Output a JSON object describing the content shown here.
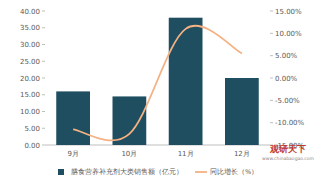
{
  "chart_data": {
    "type": "bar",
    "categories": [
      "9月",
      "10月",
      "11月",
      "12月"
    ],
    "series": [
      {
        "name": "膳食营养补充剂大类销售额（亿元）",
        "type": "bar",
        "color": "#1f4e60",
        "values": [
          16,
          14.5,
          38,
          20
        ]
      },
      {
        "name": "同比增长（%）",
        "type": "line",
        "color": "#f4b183",
        "axis": "y2",
        "values": [
          -11.5,
          -12.5,
          11,
          5.5
        ]
      }
    ],
    "ylim": [
      0,
      40
    ],
    "yticks": [
      {
        "value": 0,
        "label": "0.00"
      },
      {
        "value": 5,
        "label": "5.00"
      },
      {
        "value": 10,
        "label": "10.00"
      },
      {
        "value": 15,
        "label": "15.00"
      },
      {
        "value": 20,
        "label": "20.00"
      },
      {
        "value": 25,
        "label": "25.00"
      },
      {
        "value": 30,
        "label": "30.00"
      },
      {
        "value": 35,
        "label": "35.00"
      },
      {
        "value": 40,
        "label": "40.00"
      }
    ],
    "y2lim": [
      -15,
      15
    ],
    "y2ticks": [
      {
        "value": -15,
        "label": "-15.00%"
      },
      {
        "value": -10,
        "label": "-10.00%"
      },
      {
        "value": -5,
        "label": "-5.00%"
      },
      {
        "value": 0,
        "label": "0.00%"
      },
      {
        "value": 5,
        "label": "5.00%"
      },
      {
        "value": 10,
        "label": "10.00%"
      },
      {
        "value": 15,
        "label": "15.00%"
      }
    ],
    "watermark": [
      "观研天下",
      "www.chinabaogao.com"
    ],
    "legend": "bottom",
    "grid": false
  }
}
